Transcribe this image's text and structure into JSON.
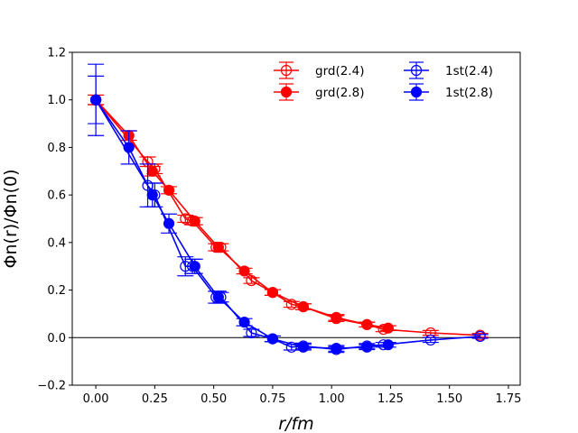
{
  "chart_data": {
    "type": "line",
    "title": "",
    "xlabel": "r/fm",
    "ylabel": "Φn(r)/Φn(0)",
    "xlim": [
      -0.1,
      1.8
    ],
    "ylim": [
      -0.2,
      1.2
    ],
    "xticks": [
      0.0,
      0.25,
      0.5,
      0.75,
      1.0,
      1.25,
      1.5,
      1.75
    ],
    "xtick_labels": [
      "0.00",
      "0.25",
      "0.50",
      "0.75",
      "1.00",
      "1.25",
      "1.50",
      "1.75"
    ],
    "yticks": [
      -0.2,
      0.0,
      0.2,
      0.4,
      0.6,
      0.8,
      1.0,
      1.2
    ],
    "ytick_labels": [
      "−0.2",
      "0.0",
      "0.2",
      "0.4",
      "0.6",
      "0.8",
      "1.0",
      "1.2"
    ],
    "reference_line_y": 0.0,
    "legend_position": "top-right",
    "series": [
      {
        "name": "grd(2.4)",
        "color": "#ff0000",
        "marker": "open-circle",
        "x": [
          0.0,
          0.22,
          0.25,
          0.38,
          0.41,
          0.51,
          0.53,
          0.66,
          0.75,
          0.83,
          0.88,
          1.02,
          1.15,
          1.22,
          1.42,
          1.63
        ],
        "y": [
          1.0,
          0.74,
          0.71,
          0.5,
          0.49,
          0.38,
          0.38,
          0.24,
          0.19,
          0.14,
          0.13,
          0.08,
          0.055,
          0.035,
          0.02,
          0.01
        ],
        "err": [
          0.02,
          0.02,
          0.02,
          0.015,
          0.015,
          0.015,
          0.015,
          0.012,
          0.012,
          0.012,
          0.012,
          0.012,
          0.01,
          0.01,
          0.01,
          0.008
        ]
      },
      {
        "name": "grd(2.8)",
        "color": "#ff0000",
        "marker": "filled-circle",
        "x": [
          0.0,
          0.14,
          0.24,
          0.31,
          0.42,
          0.52,
          0.63,
          0.75,
          0.88,
          1.02,
          1.15,
          1.24
        ],
        "y": [
          1.0,
          0.85,
          0.7,
          0.62,
          0.49,
          0.38,
          0.28,
          0.19,
          0.13,
          0.085,
          0.055,
          0.04
        ],
        "err": [
          0.02,
          0.02,
          0.02,
          0.015,
          0.015,
          0.015,
          0.012,
          0.012,
          0.012,
          0.012,
          0.01,
          0.01
        ]
      },
      {
        "name": "1st(2.4)",
        "color": "#0000ff",
        "marker": "open-circle",
        "x": [
          0.0,
          0.22,
          0.25,
          0.38,
          0.41,
          0.51,
          0.53,
          0.66,
          0.75,
          0.83,
          0.88,
          1.02,
          1.15,
          1.22,
          1.42,
          1.63
        ],
        "y": [
          1.0,
          0.64,
          0.6,
          0.3,
          0.3,
          0.17,
          0.17,
          0.02,
          -0.005,
          -0.04,
          -0.035,
          -0.05,
          -0.035,
          -0.03,
          -0.01,
          0.005
        ],
        "err": [
          0.15,
          0.09,
          0.05,
          0.04,
          0.03,
          0.025,
          0.02,
          0.015,
          0.012,
          0.012,
          0.012,
          0.012,
          0.01,
          0.01,
          0.01,
          0.008
        ]
      },
      {
        "name": "1st(2.8)",
        "color": "#0000ff",
        "marker": "filled-circle",
        "x": [
          0.0,
          0.14,
          0.24,
          0.31,
          0.42,
          0.52,
          0.63,
          0.75,
          0.88,
          1.02,
          1.15,
          1.24
        ],
        "y": [
          1.0,
          0.8,
          0.6,
          0.48,
          0.3,
          0.17,
          0.065,
          -0.005,
          -0.04,
          -0.045,
          -0.04,
          -0.03
        ],
        "err": [
          0.1,
          0.07,
          0.05,
          0.04,
          0.03,
          0.025,
          0.015,
          0.012,
          0.012,
          0.012,
          0.01,
          0.01
        ]
      }
    ]
  }
}
